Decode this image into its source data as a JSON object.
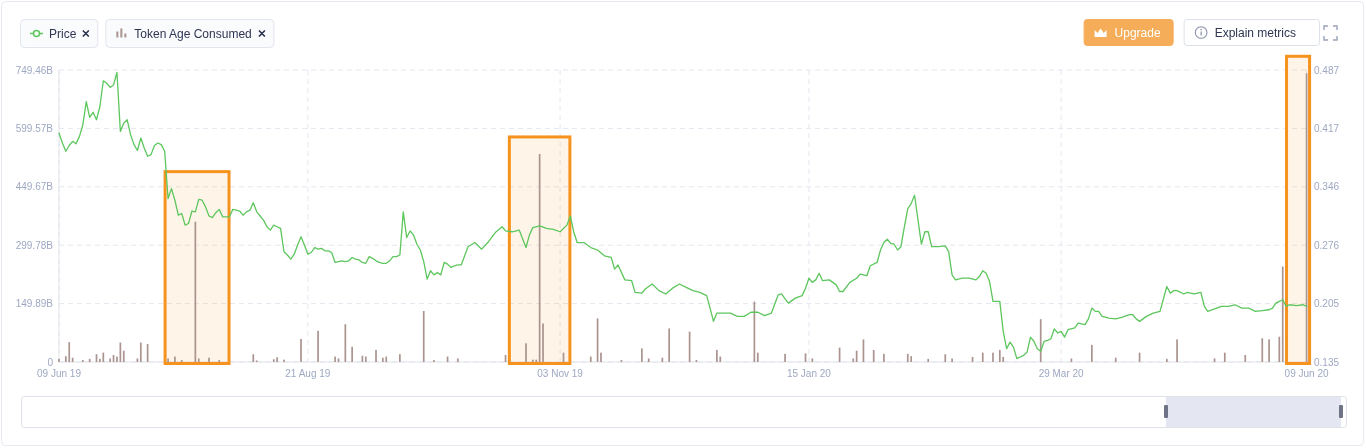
{
  "chart_data": {
    "type": "line",
    "xlim": [
      "2019-06-09",
      "2020-06-10"
    ],
    "xticks": [
      {
        "value": "2019-06-09",
        "label": "09 Jun 19"
      },
      {
        "value": "2019-08-21",
        "label": "21 Aug 19"
      },
      {
        "value": "2019-11-03",
        "label": "03 Nov 19"
      },
      {
        "value": "2020-01-15",
        "label": "15 Jan 20"
      },
      {
        "value": "2020-03-29",
        "label": "29 Mar 20"
      },
      {
        "value": "2020-06-09",
        "label": "09 Jun 20"
      }
    ],
    "ylim": [
      0,
      749.46
    ],
    "yticks": [
      0,
      {
        "value": 149.89,
        "label": "149.89B"
      },
      {
        "value": 299.78,
        "label": "299.78B"
      },
      {
        "value": 449.67,
        "label": "449.67B"
      },
      {
        "value": 599.57,
        "label": "599.57B"
      },
      {
        "value": 749.46,
        "label": "749.46B"
      }
    ],
    "y2lim": [
      0.135,
      0.487
    ],
    "y2ticks": [
      0.135,
      0.205,
      0.276,
      0.346,
      0.417,
      0.487
    ],
    "grid": true,
    "legend": "top left",
    "series": [
      {
        "name": "Price",
        "color": "#5dc65d",
        "axis": "y2",
        "x": [
          "2019-06-09",
          "2019-06-10",
          "2019-06-11",
          "2019-06-12",
          "2019-06-13",
          "2019-06-14",
          "2019-06-15",
          "2019-06-16",
          "2019-06-17",
          "2019-06-18",
          "2019-06-19",
          "2019-06-20",
          "2019-06-21",
          "2019-06-22",
          "2019-06-23",
          "2019-06-24",
          "2019-06-25",
          "2019-06-26",
          "2019-06-27",
          "2019-06-28",
          "2019-06-29",
          "2019-06-30",
          "2019-07-01",
          "2019-07-02",
          "2019-07-03",
          "2019-07-04",
          "2019-07-05",
          "2019-07-06",
          "2019-07-07",
          "2019-07-08",
          "2019-07-09",
          "2019-07-10",
          "2019-07-11",
          "2019-07-12",
          "2019-07-13",
          "2019-07-14",
          "2019-07-15",
          "2019-07-16",
          "2019-07-17",
          "2019-07-18",
          "2019-07-19",
          "2019-07-20",
          "2019-07-21",
          "2019-07-22",
          "2019-07-23",
          "2019-07-24",
          "2019-07-25",
          "2019-07-26",
          "2019-07-27",
          "2019-07-28",
          "2019-07-29",
          "2019-07-30",
          "2019-07-31",
          "2019-08-01",
          "2019-08-02",
          "2019-08-03",
          "2019-08-04",
          "2019-08-05",
          "2019-08-06",
          "2019-08-07",
          "2019-08-08",
          "2019-08-09",
          "2019-08-10",
          "2019-08-11",
          "2019-08-12",
          "2019-08-13",
          "2019-08-14",
          "2019-08-15",
          "2019-08-16",
          "2019-08-17",
          "2019-08-18",
          "2019-08-19",
          "2019-08-20",
          "2019-08-21",
          "2019-08-22",
          "2019-08-23",
          "2019-08-24",
          "2019-08-25",
          "2019-08-26",
          "2019-08-27",
          "2019-08-28",
          "2019-08-29",
          "2019-08-30",
          "2019-08-31",
          "2019-09-01",
          "2019-09-02",
          "2019-09-03",
          "2019-09-04",
          "2019-09-05",
          "2019-09-06",
          "2019-09-07",
          "2019-09-08",
          "2019-09-09",
          "2019-09-10",
          "2019-09-11",
          "2019-09-12",
          "2019-09-13",
          "2019-09-14",
          "2019-09-15",
          "2019-09-16",
          "2019-09-17",
          "2019-09-18",
          "2019-09-19",
          "2019-09-20",
          "2019-09-21",
          "2019-09-22",
          "2019-09-23",
          "2019-09-24",
          "2019-09-25",
          "2019-09-26",
          "2019-09-27",
          "2019-09-28",
          "2019-09-29",
          "2019-09-30",
          "2019-10-01",
          "2019-10-02",
          "2019-10-03",
          "2019-10-04",
          "2019-10-05",
          "2019-10-07",
          "2019-10-09",
          "2019-10-11",
          "2019-10-13",
          "2019-10-15",
          "2019-10-17",
          "2019-10-18",
          "2019-10-20",
          "2019-10-22",
          "2019-10-24",
          "2019-10-25",
          "2019-10-26",
          "2019-10-28",
          "2019-10-30",
          "2019-11-01",
          "2019-11-03",
          "2019-11-05",
          "2019-11-06",
          "2019-11-07",
          "2019-11-08",
          "2019-11-10",
          "2019-11-12",
          "2019-11-14",
          "2019-11-16",
          "2019-11-18",
          "2019-11-19",
          "2019-11-20",
          "2019-11-22",
          "2019-11-24",
          "2019-11-25",
          "2019-11-27",
          "2019-11-28",
          "2019-11-30",
          "2019-12-02",
          "2019-12-04",
          "2019-12-06",
          "2019-12-08",
          "2019-12-10",
          "2019-12-12",
          "2019-12-14",
          "2019-12-16",
          "2019-12-17",
          "2019-12-18",
          "2019-12-19",
          "2019-12-21",
          "2019-12-23",
          "2019-12-25",
          "2019-12-27",
          "2019-12-29",
          "2019-12-31",
          "2020-01-02",
          "2020-01-04",
          "2020-01-06",
          "2020-01-07",
          "2020-01-08",
          "2020-01-09",
          "2020-01-11",
          "2020-01-13",
          "2020-01-14",
          "2020-01-15",
          "2020-01-16",
          "2020-01-17",
          "2020-01-18",
          "2020-01-19",
          "2020-01-21",
          "2020-01-23",
          "2020-01-24",
          "2020-01-25",
          "2020-01-27",
          "2020-01-29",
          "2020-01-30",
          "2020-02-01",
          "2020-02-02",
          "2020-02-04",
          "2020-02-05",
          "2020-02-06",
          "2020-02-07",
          "2020-02-08",
          "2020-02-09",
          "2020-02-10",
          "2020-02-11",
          "2020-02-12",
          "2020-02-13",
          "2020-02-14",
          "2020-02-15",
          "2020-02-16",
          "2020-02-17",
          "2020-02-18",
          "2020-02-19",
          "2020-02-20",
          "2020-02-22",
          "2020-02-24",
          "2020-02-25",
          "2020-02-26",
          "2020-02-27",
          "2020-02-29",
          "2020-03-02",
          "2020-03-04",
          "2020-03-05",
          "2020-03-06",
          "2020-03-07",
          "2020-03-08",
          "2020-03-09",
          "2020-03-11",
          "2020-03-12",
          "2020-03-13",
          "2020-03-14",
          "2020-03-15",
          "2020-03-16",
          "2020-03-17",
          "2020-03-18",
          "2020-03-19",
          "2020-03-20",
          "2020-03-21",
          "2020-03-22",
          "2020-03-23",
          "2020-03-24",
          "2020-03-25",
          "2020-03-26",
          "2020-03-27",
          "2020-03-28",
          "2020-03-29",
          "2020-03-30",
          "2020-03-31",
          "2020-04-02",
          "2020-04-03",
          "2020-04-05",
          "2020-04-06",
          "2020-04-07",
          "2020-04-08",
          "2020-04-09",
          "2020-04-10",
          "2020-04-12",
          "2020-04-14",
          "2020-04-16",
          "2020-04-18",
          "2020-04-19",
          "2020-04-20",
          "2020-04-21",
          "2020-04-23",
          "2020-04-25",
          "2020-04-27",
          "2020-04-29",
          "2020-04-30",
          "2020-05-01",
          "2020-05-02",
          "2020-05-04",
          "2020-05-05",
          "2020-05-07",
          "2020-05-09",
          "2020-05-10",
          "2020-05-11",
          "2020-05-13",
          "2020-05-15",
          "2020-05-17",
          "2020-05-19",
          "2020-05-21",
          "2020-05-23",
          "2020-05-25",
          "2020-05-27",
          "2020-05-29",
          "2020-05-30",
          "2020-05-31",
          "2020-06-01",
          "2020-06-02",
          "2020-06-03",
          "2020-06-04",
          "2020-06-06",
          "2020-06-08",
          "2020-06-09"
        ],
        "values": [
          0.411,
          0.399,
          0.389,
          0.396,
          0.401,
          0.398,
          0.407,
          0.421,
          0.449,
          0.43,
          0.436,
          0.427,
          0.443,
          0.474,
          0.471,
          0.466,
          0.469,
          0.484,
          0.413,
          0.423,
          0.427,
          0.409,
          0.397,
          0.39,
          0.405,
          0.393,
          0.383,
          0.385,
          0.396,
          0.399,
          0.397,
          0.389,
          0.332,
          0.344,
          0.33,
          0.312,
          0.314,
          0.3,
          0.302,
          0.317,
          0.316,
          0.331,
          0.33,
          0.322,
          0.311,
          0.309,
          0.315,
          0.319,
          0.31,
          0.31,
          0.31,
          0.319,
          0.318,
          0.317,
          0.312,
          0.316,
          0.318,
          0.327,
          0.316,
          0.311,
          0.306,
          0.298,
          0.294,
          0.3,
          0.298,
          0.296,
          0.268,
          0.264,
          0.259,
          0.265,
          0.276,
          0.286,
          0.276,
          0.265,
          0.267,
          0.273,
          0.271,
          0.272,
          0.269,
          0.269,
          0.267,
          0.255,
          0.256,
          0.257,
          0.256,
          0.257,
          0.261,
          0.259,
          0.258,
          0.255,
          0.254,
          0.262,
          0.26,
          0.257,
          0.255,
          0.254,
          0.254,
          0.257,
          0.262,
          0.262,
          0.264,
          0.316,
          0.285,
          0.293,
          0.288,
          0.277,
          0.27,
          0.256,
          0.235,
          0.245,
          0.24,
          0.243,
          0.24,
          0.255,
          0.253,
          0.249,
          0.251,
          0.252,
          0.252,
          0.274,
          0.279,
          0.271,
          0.28,
          0.291,
          0.298,
          0.293,
          0.292,
          0.294,
          0.273,
          0.288,
          0.297,
          0.299,
          0.296,
          0.295,
          0.292,
          0.3,
          0.311,
          0.292,
          0.279,
          0.279,
          0.273,
          0.27,
          0.263,
          0.261,
          0.247,
          0.252,
          0.234,
          0.233,
          0.219,
          0.218,
          0.223,
          0.229,
          0.221,
          0.217,
          0.224,
          0.229,
          0.225,
          0.221,
          0.219,
          0.215,
          0.2,
          0.184,
          0.194,
          0.194,
          0.194,
          0.19,
          0.19,
          0.195,
          0.195,
          0.191,
          0.194,
          0.216,
          0.217,
          0.211,
          0.206,
          0.212,
          0.215,
          0.224,
          0.236,
          0.231,
          0.234,
          0.242,
          0.233,
          0.234,
          0.228,
          0.22,
          0.22,
          0.231,
          0.236,
          0.241,
          0.239,
          0.251,
          0.255,
          0.27,
          0.279,
          0.283,
          0.278,
          0.277,
          0.27,
          0.274,
          0.298,
          0.32,
          0.326,
          0.336,
          0.306,
          0.277,
          0.292,
          0.292,
          0.274,
          0.274,
          0.275,
          0.268,
          0.24,
          0.234,
          0.236,
          0.236,
          0.234,
          0.238,
          0.245,
          0.242,
          0.232,
          0.208,
          0.208,
          0.172,
          0.151,
          0.159,
          0.153,
          0.139,
          0.141,
          0.143,
          0.147,
          0.165,
          0.16,
          0.151,
          0.148,
          0.16,
          0.161,
          0.163,
          0.175,
          0.17,
          0.172,
          0.165,
          0.174,
          0.176,
          0.182,
          0.18,
          0.187,
          0.2,
          0.196,
          0.196,
          0.19,
          0.188,
          0.187,
          0.189,
          0.192,
          0.192,
          0.187,
          0.184,
          0.19,
          0.194,
          0.196,
          0.226,
          0.218,
          0.221,
          0.221,
          0.217,
          0.219,
          0.217,
          0.219,
          0.202,
          0.196,
          0.199,
          0.202,
          0.202,
          0.204,
          0.2,
          0.2,
          0.196,
          0.197,
          0.198,
          0.2,
          0.206,
          0.208,
          0.21,
          0.202,
          0.204,
          0.203,
          0.204,
          0.202
        ]
      },
      {
        "name": "Token Age Consumed",
        "type": "bar",
        "color": "#ab948f",
        "x": [
          "2019-06-09",
          "2019-06-11",
          "2019-06-12",
          "2019-06-13",
          "2019-06-16",
          "2019-06-18",
          "2019-06-20",
          "2019-06-21",
          "2019-06-22",
          "2019-06-24",
          "2019-06-25",
          "2019-06-26",
          "2019-06-27",
          "2019-06-28",
          "2019-07-02",
          "2019-07-03",
          "2019-07-05",
          "2019-07-11",
          "2019-07-13",
          "2019-07-15",
          "2019-07-19",
          "2019-07-20",
          "2019-07-23",
          "2019-07-26",
          "2019-08-05",
          "2019-08-06",
          "2019-08-11",
          "2019-08-12",
          "2019-08-14",
          "2019-08-19",
          "2019-08-24",
          "2019-08-29",
          "2019-08-30",
          "2019-09-01",
          "2019-09-03",
          "2019-09-06",
          "2019-09-07",
          "2019-09-10",
          "2019-09-12",
          "2019-09-13",
          "2019-09-17",
          "2019-09-24",
          "2019-09-27",
          "2019-10-01",
          "2019-10-04",
          "2019-10-18",
          "2019-10-24",
          "2019-10-26",
          "2019-10-27",
          "2019-10-28",
          "2019-10-29",
          "2019-11-04",
          "2019-11-12",
          "2019-11-14",
          "2019-11-15",
          "2019-11-21",
          "2019-11-27",
          "2019-11-29",
          "2019-12-03",
          "2019-12-05",
          "2019-12-11",
          "2019-12-13",
          "2019-12-19",
          "2019-12-20",
          "2019-12-30",
          "2019-12-31",
          "2020-01-08",
          "2020-01-14",
          "2020-01-16",
          "2020-01-24",
          "2020-01-28",
          "2020-01-29",
          "2020-01-31",
          "2020-02-03",
          "2020-02-06",
          "2020-02-13",
          "2020-02-14",
          "2020-02-19",
          "2020-02-24",
          "2020-02-26",
          "2020-03-03",
          "2020-03-06",
          "2020-03-09",
          "2020-03-11",
          "2020-03-12",
          "2020-03-23",
          "2020-04-01",
          "2020-04-07",
          "2020-04-14",
          "2020-04-21",
          "2020-04-29",
          "2020-05-02",
          "2020-05-13",
          "2020-05-16",
          "2020-05-22",
          "2020-05-27",
          "2020-05-29",
          "2020-06-01",
          "2020-06-02",
          "2020-06-09"
        ],
        "values": [
          8,
          15,
          51,
          11,
          5,
          8,
          20,
          8,
          24,
          9,
          18,
          14,
          50,
          29,
          9,
          50,
          46,
          9,
          14,
          5,
          360,
          9,
          11,
          5,
          20,
          4,
          7,
          12,
          6,
          59,
          80,
          14,
          9,
          97,
          39,
          16,
          14,
          31,
          11,
          14,
          20,
          131,
          5,
          14,
          9,
          18,
          48,
          6,
          6,
          534,
          99,
          24,
          14,
          112,
          24,
          5,
          35,
          9,
          11,
          86,
          78,
          5,
          31,
          14,
          155,
          24,
          21,
          22,
          9,
          37,
          9,
          29,
          58,
          31,
          21,
          21,
          15,
          8,
          20,
          9,
          13,
          24,
          24,
          31,
          13,
          110,
          9,
          44,
          11,
          24,
          8,
          58,
          9,
          24,
          18,
          61,
          58,
          65,
          245,
          741
        ]
      }
    ],
    "bands": [
      {
        "axis": "x",
        "from": "2019-07-11",
        "to": "2019-07-28",
        "color": "#f6921e"
      },
      {
        "axis": "x",
        "from": "2019-10-20",
        "to": "2019-11-05",
        "color": "#f6921e"
      },
      {
        "axis": "x",
        "from": "2020-06-04",
        "to": "2020-06-09",
        "color": "#f6921e"
      }
    ],
    "annotations": [
      "Upgrade",
      "Explain metrics"
    ]
  }
}
